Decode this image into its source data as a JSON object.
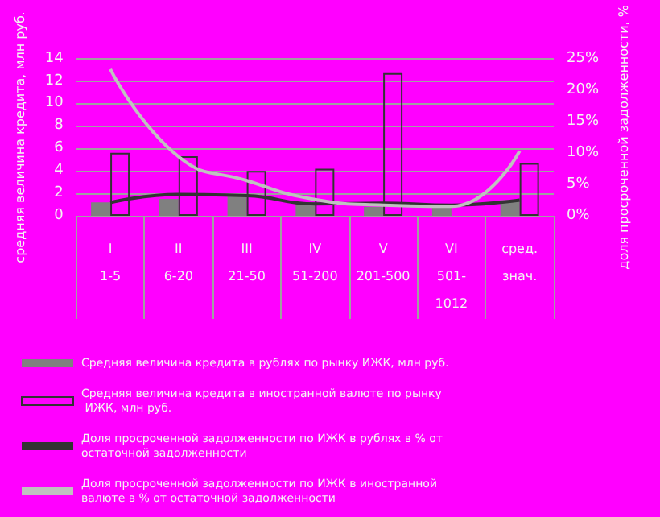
{
  "chart_data": {
    "type": "bar",
    "ylabel": "средняя величина кредита, млн руб.",
    "y2label": "доля просроченной задолженности, %",
    "categories": [
      "I\n1-5",
      "II\n6-20",
      "III\n21-50",
      "IV\n51-200",
      "V\n201-500",
      "VI\n501-\n1012",
      "сред.\nзнач."
    ],
    "series": [
      {
        "name": "Средняя величина кредита в рублях по рынку ИЖК, млн руб.",
        "color": "#808080",
        "values": [
          1.2,
          1.5,
          1.8,
          1.2,
          0.8,
          0.8,
          1.4
        ]
      },
      {
        "name": "Средняя величина кредита в иностранной валюте по рынку ИЖК, млн руб.",
        "color": "#333333",
        "values": [
          5.6,
          5.3,
          4.0,
          4.2,
          12.7,
          null,
          4.7
        ]
      },
      {
        "name": "Доля просроченной задолженности по ИЖК в рублях в % от остаточной задолженности",
        "type": "line",
        "axis": "y2",
        "color": "#333333",
        "values": [
          2.1,
          3.4,
          3.2,
          1.9,
          2.0,
          1.7,
          2.5
        ]
      },
      {
        "name": "Доля просроченной задолженности по ИЖК в иностранной валюте в % от остаточной задолженности",
        "type": "line",
        "axis": "y2",
        "color": "#c0c0c0",
        "values": [
          23.3,
          9.4,
          5.6,
          2.6,
          1.7,
          1.5,
          10.3
        ]
      }
    ],
    "ylim": [
      0,
      14
    ],
    "yticks": [
      0,
      2,
      4,
      6,
      8,
      10,
      12,
      14
    ],
    "y2lim": [
      0,
      25
    ],
    "y2ticks": [
      {
        "value": 0,
        "label": "0%"
      },
      {
        "value": 5,
        "label": "5%"
      },
      {
        "value": 10,
        "label": "10%"
      },
      {
        "value": 15,
        "label": "15%"
      },
      {
        "value": 20,
        "label": "20%"
      },
      {
        "value": 25,
        "label": "25%"
      }
    ],
    "grid": "y",
    "legend": "bottom",
    "marker": "none"
  }
}
